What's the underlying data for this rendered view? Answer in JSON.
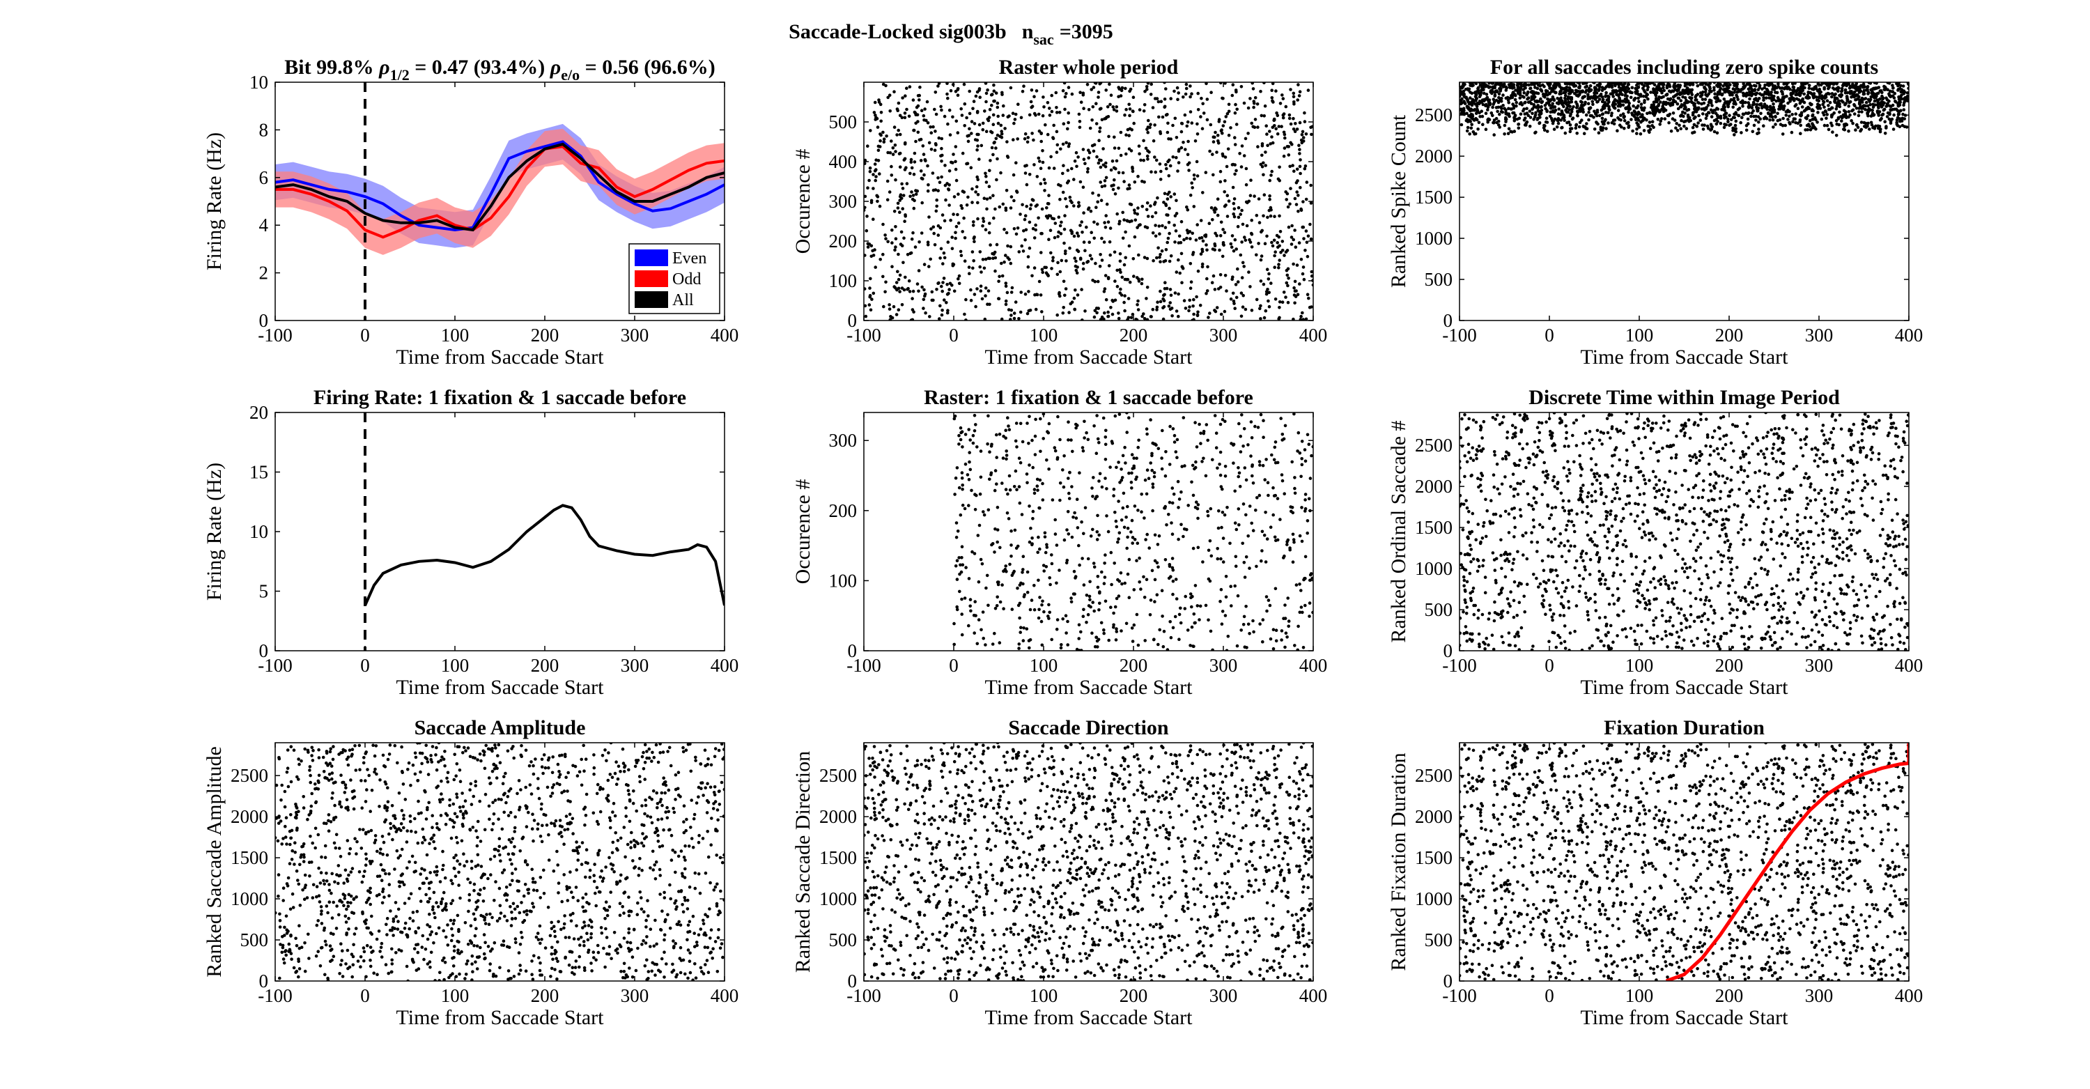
{
  "figure": {
    "suptitle_prefix": "Saccade-Locked sig003b",
    "nsac_base": "n",
    "nsac_sub": "sac",
    "nsac_value": "=3095"
  },
  "colors": {
    "even": "#0000ff",
    "odd": "#ff0000",
    "all": "#000000",
    "even_band": "#7f7fff",
    "odd_band": "#ff7f7f",
    "fixation_curve": "#ff0000"
  },
  "chart_data": [
    {
      "id": "p1",
      "type": "line",
      "title_parts": {
        "bit": "Bit 99.8% ",
        "rho": "ρ",
        "sub1": "1/2",
        "val1": " = 0.47 (93.4%) ",
        "sub2": "e/o",
        "val2": " = 0.56 (96.6%)"
      },
      "xlabel": "Time from Saccade Start",
      "ylabel": "Firing Rate (Hz)",
      "xlim": [
        -100,
        400
      ],
      "ylim": [
        0,
        10
      ],
      "xticks": [
        -100,
        0,
        100,
        200,
        300,
        400
      ],
      "yticks": [
        0,
        2,
        4,
        6,
        8,
        10
      ],
      "vline_x": 0,
      "legend": {
        "placement": "bottom-right",
        "entries": [
          "Even",
          "Odd",
          "All"
        ]
      },
      "x": [
        -100,
        -80,
        -60,
        -40,
        -20,
        0,
        20,
        40,
        60,
        80,
        100,
        120,
        140,
        160,
        180,
        200,
        220,
        240,
        260,
        280,
        300,
        320,
        340,
        360,
        380,
        400
      ],
      "series": [
        {
          "name": "Even",
          "values": [
            5.8,
            5.9,
            5.7,
            5.5,
            5.4,
            5.2,
            4.9,
            4.4,
            4.0,
            3.9,
            3.8,
            3.9,
            5.3,
            6.8,
            7.1,
            7.3,
            7.5,
            6.9,
            5.8,
            5.3,
            4.9,
            4.6,
            4.7,
            5.0,
            5.3,
            5.7
          ],
          "band": 0.75
        },
        {
          "name": "Odd",
          "values": [
            5.5,
            5.5,
            5.3,
            5.0,
            4.6,
            3.8,
            3.5,
            3.8,
            4.2,
            4.4,
            4.0,
            3.8,
            4.3,
            5.2,
            6.4,
            7.2,
            7.3,
            6.6,
            6.4,
            5.6,
            5.2,
            5.5,
            5.9,
            6.3,
            6.6,
            6.7
          ],
          "band": 0.75
        },
        {
          "name": "All",
          "values": [
            5.6,
            5.7,
            5.5,
            5.2,
            5.0,
            4.5,
            4.2,
            4.1,
            4.1,
            4.2,
            3.9,
            3.8,
            4.8,
            6.0,
            6.7,
            7.2,
            7.4,
            6.8,
            6.1,
            5.4,
            5.0,
            5.0,
            5.3,
            5.6,
            6.0,
            6.2
          ]
        }
      ]
    },
    {
      "id": "p2",
      "type": "scatter",
      "title": "Raster whole period",
      "xlabel": "Time from Saccade Start",
      "ylabel": "Occurence #",
      "xlim": [
        -100,
        400
      ],
      "ylim": [
        0,
        600
      ],
      "xticks": [
        -100,
        0,
        100,
        200,
        300,
        400
      ],
      "yticks": [
        0,
        100,
        200,
        300,
        400,
        500
      ],
      "points": {
        "count": 1800,
        "x_range": [
          -100,
          400
        ],
        "y_range": [
          0,
          600
        ],
        "distribution": "uniform"
      }
    },
    {
      "id": "p3",
      "type": "scatter",
      "title": "For all saccades including zero spike counts",
      "xlabel": "Time from Saccade Start",
      "ylabel": "Ranked Spike Count",
      "xlim": [
        -100,
        400
      ],
      "ylim": [
        0,
        2900
      ],
      "xticks": [
        -100,
        0,
        100,
        200,
        300,
        400
      ],
      "yticks": [
        0,
        500,
        1000,
        1500,
        2000,
        2500
      ],
      "points": {
        "count": 2400,
        "x_range": [
          -100,
          400
        ],
        "y_range": [
          2250,
          2900
        ],
        "distribution": "dense-top"
      }
    },
    {
      "id": "p4",
      "type": "line",
      "title": "Firing Rate: 1 fixation & 1 saccade before",
      "xlabel": "Time from Saccade Start",
      "ylabel": "Firing Rate (Hz)",
      "xlim": [
        -100,
        400
      ],
      "ylim": [
        0,
        20
      ],
      "xticks": [
        -100,
        0,
        100,
        200,
        300,
        400
      ],
      "yticks": [
        0,
        5,
        10,
        15,
        20
      ],
      "vline_x": 0,
      "x": [
        0,
        10,
        20,
        40,
        60,
        80,
        100,
        120,
        140,
        160,
        180,
        200,
        210,
        220,
        230,
        240,
        250,
        260,
        280,
        300,
        320,
        340,
        360,
        370,
        380,
        390,
        400
      ],
      "series": [
        {
          "name": "",
          "values": [
            3.8,
            5.5,
            6.5,
            7.2,
            7.5,
            7.6,
            7.4,
            7.0,
            7.5,
            8.5,
            10.0,
            11.2,
            11.8,
            12.2,
            12.0,
            11.0,
            9.6,
            8.8,
            8.4,
            8.1,
            8.0,
            8.3,
            8.5,
            8.9,
            8.7,
            7.5,
            3.8
          ]
        }
      ]
    },
    {
      "id": "p5",
      "type": "scatter",
      "title": "Raster: 1 fixation & 1 saccade before",
      "xlabel": "Time from Saccade Start",
      "ylabel": "Occurence #",
      "xlim": [
        -100,
        400
      ],
      "ylim": [
        0,
        340
      ],
      "xticks": [
        -100,
        0,
        100,
        200,
        300,
        400
      ],
      "yticks": [
        0,
        100,
        200,
        300
      ],
      "points": {
        "count": 900,
        "x_range": [
          0,
          400
        ],
        "y_range": [
          0,
          340
        ],
        "distribution": "uniform"
      }
    },
    {
      "id": "p6",
      "type": "scatter",
      "title": "Discrete Time within Image Period",
      "xlabel": "Time from Saccade Start",
      "ylabel": "Ranked Ordinal Saccade #",
      "xlim": [
        -100,
        400
      ],
      "ylim": [
        0,
        2900
      ],
      "xticks": [
        -100,
        0,
        100,
        200,
        300,
        400
      ],
      "yticks": [
        0,
        500,
        1000,
        1500,
        2000,
        2500
      ],
      "points": {
        "count": 1800,
        "x_range": [
          -100,
          400
        ],
        "y_range": [
          0,
          2900
        ],
        "distribution": "uniform"
      }
    },
    {
      "id": "p7",
      "type": "scatter",
      "title": "Saccade Amplitude",
      "xlabel": "Time from Saccade Start",
      "ylabel": "Ranked Saccade Amplitude",
      "xlim": [
        -100,
        400
      ],
      "ylim": [
        0,
        2900
      ],
      "xticks": [
        -100,
        0,
        100,
        200,
        300,
        400
      ],
      "yticks": [
        0,
        500,
        1000,
        1500,
        2000,
        2500
      ],
      "points": {
        "count": 1800,
        "x_range": [
          -100,
          400
        ],
        "y_range": [
          0,
          2900
        ],
        "distribution": "uniform"
      }
    },
    {
      "id": "p8",
      "type": "scatter",
      "title": "Saccade Direction",
      "xlabel": "Time from Saccade Start",
      "ylabel": "Ranked Saccade Direction",
      "xlim": [
        -100,
        400
      ],
      "ylim": [
        0,
        2900
      ],
      "xticks": [
        -100,
        0,
        100,
        200,
        300,
        400
      ],
      "yticks": [
        0,
        500,
        1000,
        1500,
        2000,
        2500
      ],
      "points": {
        "count": 1800,
        "x_range": [
          -100,
          400
        ],
        "y_range": [
          0,
          2900
        ],
        "distribution": "uniform"
      }
    },
    {
      "id": "p9",
      "type": "scatter",
      "title": "Fixation Duration",
      "xlabel": "Time from Saccade Start",
      "ylabel": "Ranked Fixation Duration",
      "xlim": [
        -100,
        400
      ],
      "ylim": [
        0,
        2900
      ],
      "xticks": [
        -100,
        0,
        100,
        200,
        300,
        400
      ],
      "yticks": [
        0,
        500,
        1000,
        1500,
        2000,
        2500
      ],
      "points": {
        "count": 1800,
        "x_range": [
          -100,
          400
        ],
        "y_range": [
          0,
          2900
        ],
        "distribution": "uniform"
      },
      "curve": {
        "x": [
          130,
          150,
          170,
          190,
          210,
          230,
          250,
          270,
          290,
          310,
          330,
          350,
          370,
          390,
          400,
          400
        ],
        "y": [
          0,
          80,
          280,
          560,
          880,
          1200,
          1520,
          1820,
          2080,
          2280,
          2420,
          2520,
          2590,
          2640,
          2650,
          2900
        ]
      }
    }
  ]
}
